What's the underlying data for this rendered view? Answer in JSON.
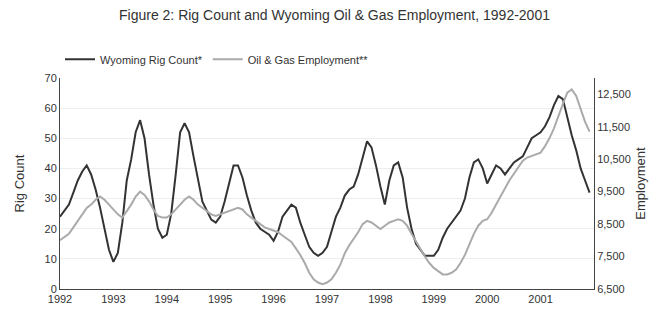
{
  "chart_data": {
    "type": "line",
    "title": "Figure 2: Rig Count and Wyoming Oil & Gas Employment, 1992-2001",
    "ylabel": "Rig Count",
    "y2label": "Employment",
    "x": [
      1992.0,
      1992.083,
      1992.167,
      1992.25,
      1992.333,
      1992.417,
      1992.5,
      1992.583,
      1992.667,
      1992.75,
      1992.833,
      1992.917,
      1993.0,
      1993.083,
      1993.167,
      1993.25,
      1993.333,
      1993.417,
      1993.5,
      1993.583,
      1993.667,
      1993.75,
      1993.833,
      1993.917,
      1994.0,
      1994.083,
      1994.167,
      1994.25,
      1994.333,
      1994.417,
      1994.5,
      1994.583,
      1994.667,
      1994.75,
      1994.833,
      1994.917,
      1995.0,
      1995.083,
      1995.167,
      1995.25,
      1995.333,
      1995.417,
      1995.5,
      1995.583,
      1995.667,
      1995.75,
      1995.833,
      1995.917,
      1996.0,
      1996.083,
      1996.167,
      1996.25,
      1996.333,
      1996.417,
      1996.5,
      1996.583,
      1996.667,
      1996.75,
      1996.833,
      1996.917,
      1997.0,
      1997.083,
      1997.167,
      1997.25,
      1997.333,
      1997.417,
      1997.5,
      1997.583,
      1997.667,
      1997.75,
      1997.833,
      1997.917,
      1998.0,
      1998.083,
      1998.167,
      1998.25,
      1998.333,
      1998.417,
      1998.5,
      1998.583,
      1998.667,
      1998.75,
      1998.833,
      1998.917,
      1999.0,
      1999.083,
      1999.167,
      1999.25,
      1999.333,
      1999.417,
      1999.5,
      1999.583,
      1999.667,
      1999.75,
      1999.833,
      1999.917,
      2000.0,
      2000.083,
      2000.167,
      2000.25,
      2000.333,
      2000.417,
      2000.5,
      2000.583,
      2000.667,
      2000.75,
      2000.833,
      2000.917,
      2001.0,
      2001.083,
      2001.167,
      2001.25,
      2001.333,
      2001.417,
      2001.5,
      2001.583,
      2001.667,
      2001.75,
      2001.833,
      2001.917
    ],
    "series": [
      {
        "name": "Wyoming Rig Count*",
        "color": "#333333",
        "values": [
          24,
          26,
          28,
          32,
          36,
          39,
          41,
          38,
          33,
          27,
          20,
          13,
          9,
          12,
          22,
          36,
          43,
          52,
          56,
          50,
          38,
          28,
          20,
          17,
          18,
          25,
          38,
          52,
          55,
          52,
          44,
          36,
          29,
          26,
          23,
          22,
          24,
          29,
          35,
          41,
          41,
          37,
          31,
          26,
          22,
          20,
          19,
          18,
          16,
          19,
          24,
          26,
          28,
          27,
          22,
          18,
          14,
          12,
          11,
          12,
          14,
          19,
          24,
          27,
          31,
          33,
          34,
          38,
          44,
          49,
          47,
          41,
          34,
          28,
          36,
          41,
          42,
          37,
          27,
          20,
          15,
          13,
          11,
          11,
          11,
          13,
          17,
          20,
          22,
          24,
          26,
          30,
          37,
          42,
          43,
          40,
          35,
          38,
          41,
          40,
          38,
          40,
          42,
          43,
          44,
          47,
          50,
          51,
          52,
          54,
          57,
          61,
          64,
          63,
          57,
          51,
          46,
          40,
          36,
          32
        ]
      },
      {
        "name": "Oil & Gas Employment**",
        "color": "#aaaaaa",
        "axis": "y2",
        "values": [
          8000,
          8100,
          8200,
          8400,
          8600,
          8800,
          9000,
          9100,
          9250,
          9350,
          9250,
          9100,
          8950,
          8800,
          8700,
          8900,
          9100,
          9350,
          9500,
          9400,
          9200,
          8950,
          8750,
          8700,
          8700,
          8800,
          8950,
          9100,
          9250,
          9350,
          9250,
          9100,
          9000,
          8900,
          8800,
          8750,
          8800,
          8850,
          8900,
          8950,
          9000,
          8950,
          8800,
          8700,
          8600,
          8500,
          8400,
          8350,
          8300,
          8250,
          8150,
          8050,
          7950,
          7750,
          7550,
          7300,
          7000,
          6800,
          6700,
          6650,
          6700,
          6800,
          7000,
          7250,
          7600,
          7850,
          8050,
          8250,
          8500,
          8600,
          8550,
          8450,
          8350,
          8450,
          8550,
          8600,
          8650,
          8600,
          8450,
          8200,
          7950,
          7700,
          7500,
          7300,
          7150,
          7050,
          6950,
          6950,
          7000,
          7100,
          7300,
          7550,
          7900,
          8200,
          8450,
          8600,
          8650,
          8850,
          9100,
          9350,
          9600,
          9850,
          10050,
          10250,
          10450,
          10550,
          10600,
          10650,
          10700,
          10900,
          11150,
          11450,
          11850,
          12200,
          12550,
          12650,
          12450,
          12050,
          11650,
          11350
        ]
      }
    ],
    "xlim": [
      1992.0,
      2002.0
    ],
    "xticks": [
      1992,
      1993,
      1994,
      1995,
      1996,
      1997,
      1998,
      1999,
      2000,
      2001
    ],
    "ylim": [
      0,
      70
    ],
    "yticks": [
      0,
      10,
      20,
      30,
      40,
      50,
      60,
      70
    ],
    "y2lim": [
      6500,
      13000
    ],
    "y2ticks": [
      {
        "value": 6500,
        "label": "6,500"
      },
      {
        "value": 7500,
        "label": "7,500"
      },
      {
        "value": 8500,
        "label": "8,500"
      },
      {
        "value": 9500,
        "label": "9,500"
      },
      {
        "value": 10500,
        "label": "10,500"
      },
      {
        "value": 11500,
        "label": "11,500"
      },
      {
        "value": 12500,
        "label": "12,500"
      }
    ],
    "grid": true,
    "legend": "upper left"
  }
}
